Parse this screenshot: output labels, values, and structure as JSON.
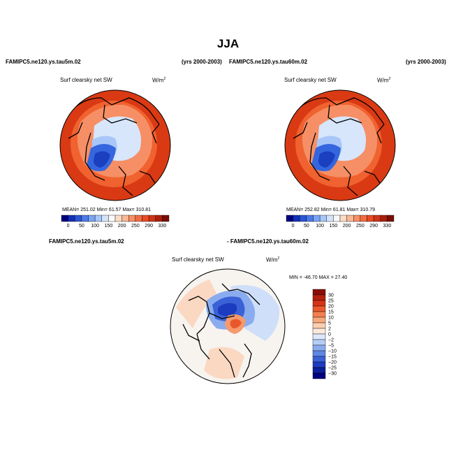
{
  "figure": {
    "title": "JJA"
  },
  "panels": [
    {
      "case": "FAMIPC5.ne120.ys.tau5m.02",
      "years": "(yrs 2000-2003)",
      "variable": "Surf clearsky net SW",
      "units": "W/m",
      "units_exp": "2",
      "stats": "MEAN= 251.02   Min=  61.57   Max= 310.81",
      "colorbar": {
        "labels": [
          "0",
          "50",
          "100",
          "150",
          "200",
          "250",
          "290",
          "330"
        ],
        "colors": [
          "#00007f",
          "#1131b8",
          "#2d55d4",
          "#4a7be8",
          "#7aa3f2",
          "#a8c6f8",
          "#d3e3fa",
          "#f9f9f9",
          "#fcdcc6",
          "#f9b896",
          "#f68f66",
          "#f26c43",
          "#e84b25",
          "#cf3517",
          "#a8200c",
          "#7a0d03"
        ]
      },
      "map_colors": {
        "warm_outer": "#d93a14",
        "warm_mid": "#f0622f",
        "warm_inner": "#f68f66",
        "cool_ice": "#d7e6fb",
        "cool_pale": "#a8c6f8",
        "greenland": "#3566dd",
        "greenland_core": "#1a3fbf"
      }
    },
    {
      "case": "FAMIPC5.ne120.ys.tau60m.02",
      "years": "(yrs 2000-2003)",
      "variable": "Surf clearsky net SW",
      "units": "W/m",
      "units_exp": "2",
      "stats": "MEAN= 252.82   Min=  61.81   Max= 310.79",
      "colorbar": {
        "labels": [
          "0",
          "50",
          "100",
          "150",
          "200",
          "250",
          "290",
          "330"
        ],
        "colors": [
          "#00007f",
          "#1131b8",
          "#2d55d4",
          "#4a7be8",
          "#7aa3f2",
          "#a8c6f8",
          "#d3e3fa",
          "#f9f9f9",
          "#fcdcc6",
          "#f9b896",
          "#f68f66",
          "#f26c43",
          "#e84b25",
          "#cf3517",
          "#a8200c",
          "#7a0d03"
        ]
      },
      "map_colors": {
        "warm_outer": "#d93a14",
        "warm_mid": "#f0622f",
        "warm_inner": "#f68f66",
        "cool_ice": "#d7e6fb",
        "cool_pale": "#a8c6f8",
        "greenland": "#3566dd",
        "greenland_core": "#1a3fbf"
      }
    }
  ],
  "difference": {
    "case_a": "FAMIPC5.ne120.ys.tau5m.02",
    "case_b": "- FAMIPC5.ne120.ys.tau60m.02",
    "variable": "Surf clearsky net SW",
    "units": "W/m",
    "units_exp": "2",
    "stats": "MIN = -46.70  MAX =  27.40",
    "colorbar": {
      "labels": [
        "30",
        "25",
        "20",
        "15",
        "10",
        "5",
        "2",
        "0",
        "−2",
        "−5",
        "−10",
        "−15",
        "−20",
        "−25",
        "−30"
      ],
      "colors": [
        "#8a0d03",
        "#b5200c",
        "#d83317",
        "#ec5a2c",
        "#f4804f",
        "#f8a97c",
        "#fbcfb0",
        "#fde9dc",
        "#dde9fb",
        "#b5cdf6",
        "#8aacef",
        "#5f88e4",
        "#3a62d6",
        "#1c3cc0",
        "#0c1f9a",
        "#00007f"
      ]
    },
    "map_colors": {
      "neutral": "#f7f4f0",
      "warm_pale": "#fbd8c2",
      "warm": "#f49a6e",
      "warm_strong": "#e9582b",
      "cool_pale": "#cfdff9",
      "cool": "#8aacef",
      "cool_strong": "#3a62d6",
      "cool_deep": "#1c3cc0"
    }
  }
}
